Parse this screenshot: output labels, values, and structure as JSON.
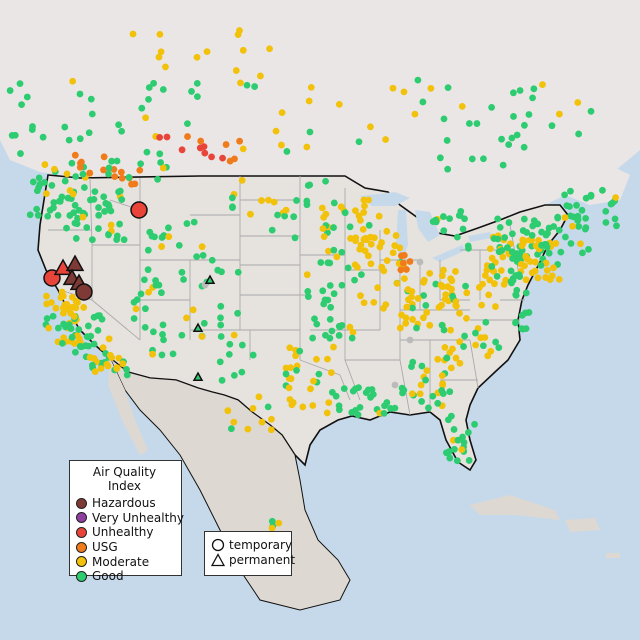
{
  "legend": {
    "title": "Air Quality Index",
    "categories": [
      {
        "label": "Hazardous",
        "color": "#7e3a35"
      },
      {
        "label": "Very Unhealthy",
        "color": "#8e3fa0"
      },
      {
        "label": "Unhealthy",
        "color": "#e8443a"
      },
      {
        "label": "USG",
        "color": "#f07b1a"
      },
      {
        "label": "Moderate",
        "color": "#f2c109"
      },
      {
        "label": "Good",
        "color": "#2ecc71"
      }
    ],
    "shapes": [
      {
        "label": "temporary",
        "icon": "circle"
      },
      {
        "label": "permanent",
        "icon": "triangle"
      }
    ]
  },
  "map_colors": {
    "water": "#c6d9ea",
    "land": "#e6e3df",
    "mexico_land": "#ddd8d2",
    "state_border": "#aaaaaa",
    "country_border": "#111111"
  }
}
